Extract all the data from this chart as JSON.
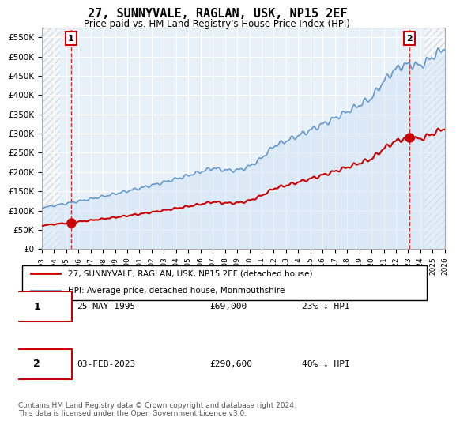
{
  "title": "27, SUNNYVALE, RAGLAN, USK, NP15 2EF",
  "subtitle": "Price paid vs. HM Land Registry's House Price Index (HPI)",
  "ylabel_ticks": [
    "£0",
    "£50K",
    "£100K",
    "£150K",
    "£200K",
    "£250K",
    "£300K",
    "£350K",
    "£400K",
    "£450K",
    "£500K",
    "£550K"
  ],
  "ylim": [
    0,
    575000
  ],
  "yticks": [
    0,
    50000,
    100000,
    150000,
    200000,
    250000,
    300000,
    350000,
    400000,
    450000,
    500000,
    550000
  ],
  "xmin_year": 1993,
  "xmax_year": 2026,
  "xticks": [
    1993,
    1994,
    1995,
    1996,
    1997,
    1998,
    1999,
    2000,
    2001,
    2002,
    2003,
    2004,
    2005,
    2006,
    2007,
    2008,
    2009,
    2010,
    2011,
    2012,
    2013,
    2014,
    2015,
    2016,
    2017,
    2018,
    2019,
    2020,
    2021,
    2022,
    2023,
    2024,
    2025,
    2026
  ],
  "transaction1_year": 1995.4,
  "transaction1_price": 69000,
  "transaction1_label": "1",
  "transaction1_date": "25-MAY-1995",
  "transaction1_pct": "23% ↓ HPI",
  "transaction2_year": 2023.1,
  "transaction2_price": 290600,
  "transaction2_label": "2",
  "transaction2_date": "03-FEB-2023",
  "transaction2_pct": "40% ↓ HPI",
  "hpi_color": "#6699cc",
  "hpi_color_fill": "#d0e4f7",
  "property_color": "#cc0000",
  "dashed_vline_color": "#cc0000",
  "background_hatch_color": "#cccccc",
  "plot_bg_color": "#e8f0f8",
  "grid_color": "#ffffff",
  "legend_label1": "27, SUNNYVALE, RAGLAN, USK, NP15 2EF (detached house)",
  "legend_label2": "HPI: Average price, detached house, Monmouthshire",
  "footer": "Contains HM Land Registry data © Crown copyright and database right 2024.\nThis data is licensed under the Open Government Licence v3.0.",
  "note1_box": "1",
  "note1_date": "25-MAY-1995",
  "note1_price": "£69,000",
  "note1_pct": "23% ↓ HPI",
  "note2_box": "2",
  "note2_date": "03-FEB-2023",
  "note2_price": "£290,600",
  "note2_pct": "40% ↓ HPI"
}
